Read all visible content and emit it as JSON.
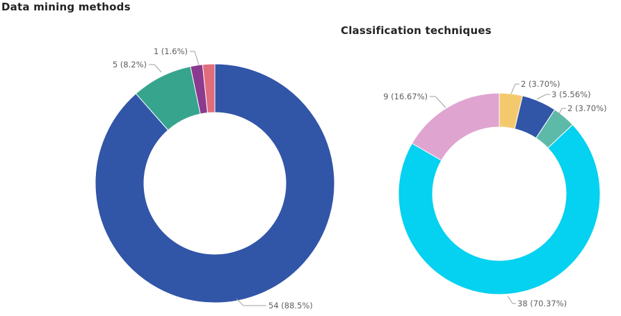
{
  "chart_data": [
    {
      "type": "pie",
      "variant": "donut",
      "title": "Data mining methods",
      "slices": [
        {
          "value": 54,
          "label": "54 (88.5%)",
          "color": "#3155A7"
        },
        {
          "value": 5,
          "label": "5 (8.2%)",
          "color": "#37A58E"
        },
        {
          "value": 1,
          "label": "1 (1.6%)",
          "color": "#8B3A8F"
        },
        {
          "value": 1,
          "label": "1 (1.6%)",
          "color": "#E06C7C"
        }
      ]
    },
    {
      "type": "pie",
      "variant": "donut",
      "title": "Classification techniques",
      "slices": [
        {
          "value": 2,
          "label": "2 (3.70%)",
          "color": "#F4C96E"
        },
        {
          "value": 3,
          "label": "3 (5.56%)",
          "color": "#3155A7"
        },
        {
          "value": 2,
          "label": "2 (3.70%)",
          "color": "#5EBAA8"
        },
        {
          "value": 38,
          "label": "38 (70.37%)",
          "color": "#05D1F0"
        },
        {
          "value": 9,
          "label": "9 (16.67%)",
          "color": "#DFA5D0"
        }
      ]
    }
  ]
}
